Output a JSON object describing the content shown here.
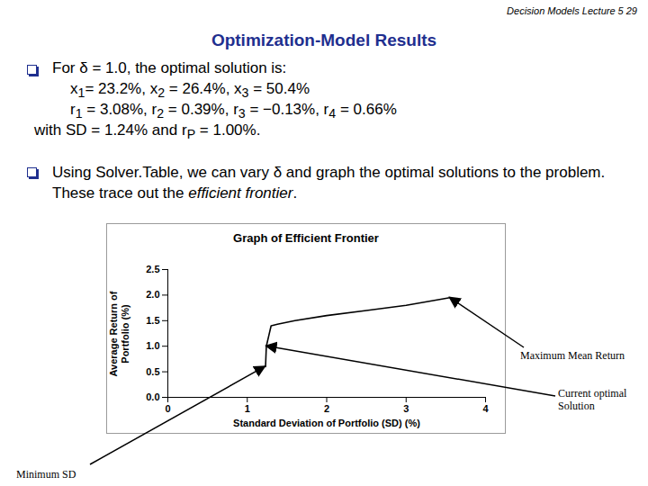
{
  "header": "Decision Models Lecture 5 29",
  "title": "Optimization-Model Results",
  "bullets": [
    {
      "lines": [
        "For δ = 1.0, the optimal solution is:",
        "x1= 23.2%, x2 = 26.4%, x3 = 50.4%",
        "r1 = 3.08%, r2 = 0.39%, r3 = −0.13%, r4 = 0.66%",
        "with SD = 1.24% and rP = 1.00%."
      ]
    },
    {
      "lines": [
        "Using Solver.Table, we can vary δ and graph the optimal solutions to the problem.  These trace out the efficient frontier."
      ],
      "italic": "efficient frontier"
    }
  ],
  "chart_data": {
    "type": "line",
    "title": "Graph of Efficient Frontier",
    "x_label": "Standard Deviation of Portfolio (SD) (%)",
    "y_label": "Average Return of Portfolio (%)",
    "x": [
      1.23,
      1.24,
      1.27,
      1.3,
      1.38,
      1.6,
      2.0,
      2.5,
      3.0,
      3.55
    ],
    "values": [
      0.6,
      1.0,
      1.2,
      1.4,
      1.43,
      1.5,
      1.6,
      1.7,
      1.8,
      1.95
    ],
    "color": "#000000",
    "xlim": [
      0,
      4
    ],
    "ylim": [
      0,
      2.5
    ],
    "xticks": [
      0,
      1,
      2,
      3,
      4
    ],
    "yticks": [
      {
        "value": 0,
        "label": "0.0"
      },
      0.5,
      {
        "value": 1,
        "label": "1.0"
      },
      1.5,
      {
        "value": 2,
        "label": "2.0"
      },
      2.5
    ],
    "grid": false,
    "annotations": [
      {
        "text": "Maximum Mean Return",
        "x": 3.55,
        "y": 1.95
      },
      {
        "text": "Current optimal Solution",
        "x": 1.24,
        "y": 1.0
      },
      {
        "text": "Minimum SD",
        "x": 1.23,
        "y": 0.6
      }
    ]
  }
}
